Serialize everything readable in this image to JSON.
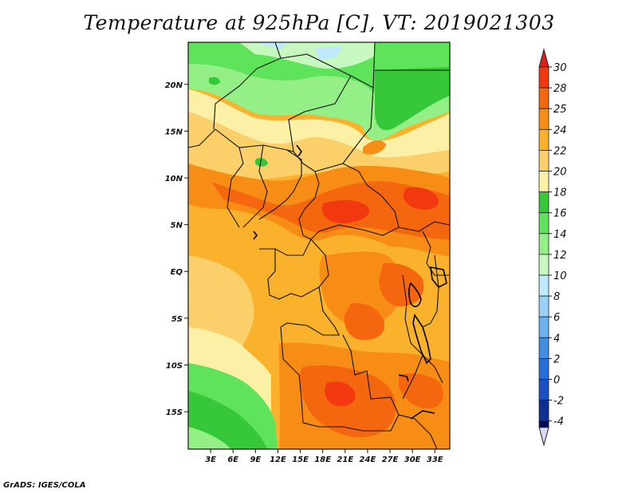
{
  "title": "Temperature at 925hPa [C], VT: 2019021303",
  "footer": "GrADS: IGES/COLA",
  "map": {
    "region": "Central Africa",
    "lat_labels": [
      "20N",
      "15N",
      "10N",
      "5N",
      "EQ",
      "5S",
      "10S",
      "15S"
    ],
    "lat_values": [
      20,
      15,
      10,
      5,
      0,
      -5,
      -10,
      -15
    ],
    "lon_labels": [
      "3E",
      "6E",
      "9E",
      "12E",
      "15E",
      "18E",
      "21E",
      "24E",
      "27E",
      "30E",
      "33E"
    ],
    "lon_values": [
      3,
      6,
      9,
      12,
      15,
      18,
      21,
      24,
      27,
      30,
      33
    ],
    "lat_range": [
      -19,
      24.5
    ],
    "lon_range": [
      0,
      35
    ]
  },
  "colorbar": {
    "labels": [
      "30",
      "28",
      "25",
      "24",
      "22",
      "20",
      "18",
      "16",
      "14",
      "12",
      "10",
      "8",
      "6",
      "4",
      "2",
      "0",
      "-2",
      "-4"
    ],
    "colors": [
      "#f2380e",
      "#f5670f",
      "#f78d14",
      "#fab22d",
      "#fbd06a",
      "#fbf0a6",
      "#37c83a",
      "#5fe35a",
      "#93ef86",
      "#c7f8bf",
      "#bfe9ff",
      "#9bd1f7",
      "#6cb0ef",
      "#418fe4",
      "#266fda",
      "#1a50c3",
      "#0f2f94"
    ],
    "top_color": "#d9201a",
    "bottom_color": "#070b55",
    "under_color": "#d8dcf3"
  }
}
